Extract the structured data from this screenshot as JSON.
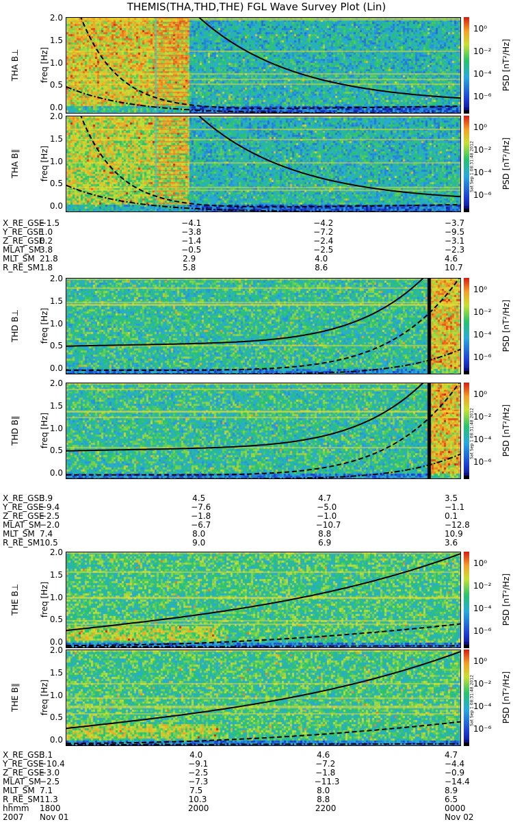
{
  "title": "THEMIS(THA,THD,THE) FGL Wave Survey Plot (Lin)",
  "colors": {
    "bg": "#22c07a",
    "red": "#d01010",
    "orange": "#f59a20",
    "yellow": "#f0e030",
    "green": "#30c060",
    "blue": "#2050d0",
    "navy": "#0a0a80"
  },
  "colorbar": {
    "label": "PSD [nT²/Hz]",
    "ticks": [
      "10⁰",
      "10⁻²",
      "10⁻⁴",
      "10⁻⁶"
    ]
  },
  "stamp": "Sat Sep 1 08:31:48 2012",
  "yticks": [
    "2.0",
    "1.5",
    "1.0",
    "0.5",
    "0.0"
  ],
  "chart_data": [
    {
      "type": "heatmap",
      "name": "THA B⊥",
      "probe": "THA",
      "ylabel": "THA B⊥",
      "ylabel2": "freq [Hz]",
      "ylim": [
        0,
        2.0
      ],
      "xlim": [
        0,
        6
      ]
    },
    {
      "type": "heatmap",
      "name": "THA B∥",
      "probe": "THA",
      "ylabel": "THA B∥",
      "ylabel2": "freq [Hz]",
      "ylim": [
        0,
        2.0
      ],
      "xlim": [
        0,
        6
      ]
    },
    {
      "type": "heatmap",
      "name": "THD B⊥",
      "probe": "THD",
      "ylabel": "THD B⊥",
      "ylabel2": "freq [Hz]",
      "ylim": [
        0,
        2.0
      ],
      "xlim": [
        0,
        6
      ]
    },
    {
      "type": "heatmap",
      "name": "THD B∥",
      "probe": "THD",
      "ylabel": "THD B∥",
      "ylabel2": "freq [Hz]",
      "ylim": [
        0,
        2.0
      ],
      "xlim": [
        0,
        6
      ]
    },
    {
      "type": "heatmap",
      "name": "THE B⊥",
      "probe": "THE",
      "ylabel": "THE B⊥",
      "ylabel2": "freq [Hz]",
      "ylim": [
        0,
        2.0
      ],
      "xlim": [
        0,
        6
      ]
    },
    {
      "type": "heatmap",
      "name": "THE B∥",
      "probe": "THE",
      "ylabel": "THE B∥",
      "ylabel2": "freq [Hz]",
      "ylim": [
        0,
        2.0
      ],
      "xlim": [
        0,
        6
      ]
    }
  ],
  "ephemeris": [
    {
      "labels": [
        "X_RE_GSE",
        "Y_RE_GSE",
        "Z_RE_GSE",
        "MLAT_SM",
        "MLT_SM",
        "R_RE_SM"
      ],
      "cols": [
        [
          "−1.5",
          "1.0",
          "0.2",
          "3.8",
          "21.8",
          "1.8"
        ],
        [
          "−4.1",
          "−3.8",
          "−1.4",
          "−0.5",
          "2.9",
          "5.8"
        ],
        [
          "−4.2",
          "−7.2",
          "−2.4",
          "−2.5",
          "4.0",
          "8.6"
        ],
        [
          "−3.7",
          "−9.5",
          "−3.1",
          "−2.3",
          "4.6",
          "10.7"
        ]
      ]
    },
    {
      "labels": [
        "X_RE_GSE",
        "Y_RE_GSE",
        "Z_RE_GSE",
        "MLAT_SM",
        "MLT_SM",
        "R_RE_SM"
      ],
      "cols": [
        [
          "3.9",
          "−9.4",
          "−2.5",
          "−2.0",
          "7.4",
          "10.5"
        ],
        [
          "4.5",
          "−7.6",
          "−1.8",
          "−6.7",
          "8.0",
          "9.0"
        ],
        [
          "4.7",
          "−5.0",
          "−1.0",
          "−10.7",
          "8.8",
          "6.9"
        ],
        [
          "3.5",
          "−1.1",
          "0.1",
          "−12.8",
          "10.9",
          "3.6"
        ]
      ]
    },
    {
      "labels": [
        "X_RE_GSE",
        "Y_RE_GSE",
        "Z_RE_GSE",
        "MLAT_SM",
        "MLT_SM",
        "R_RE_SM",
        "hhmm",
        "2007"
      ],
      "cols": [
        [
          "3.1",
          "−10.4",
          "−3.0",
          "−2.5",
          "7.1",
          "11.3",
          "1800",
          "Nov 01"
        ],
        [
          "4.0",
          "−9.1",
          "−2.5",
          "−7.3",
          "7.5",
          "10.3",
          "2000",
          ""
        ],
        [
          "4.6",
          "−7.2",
          "−1.8",
          "−11.3",
          "8.0",
          "8.8",
          "2200",
          ""
        ],
        [
          "4.7",
          "−4.4",
          "−0.9",
          "−14.4",
          "8.9",
          "6.5",
          "0000",
          "Nov 02"
        ]
      ]
    }
  ]
}
